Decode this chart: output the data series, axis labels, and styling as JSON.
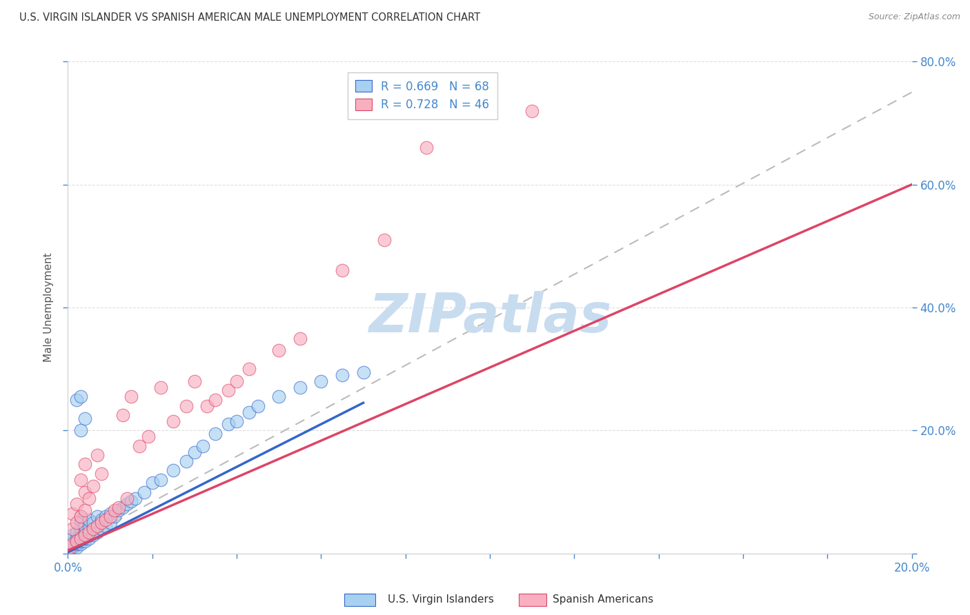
{
  "title": "U.S. VIRGIN ISLANDER VS SPANISH AMERICAN MALE UNEMPLOYMENT CORRELATION CHART",
  "source": "Source: ZipAtlas.com",
  "ylabel": "Male Unemployment",
  "xlim": [
    0,
    0.2
  ],
  "ylim": [
    0,
    0.8
  ],
  "color_blue": "#A8D0F0",
  "color_pink": "#F8B0C0",
  "color_blue_line": "#3366CC",
  "color_pink_line": "#DD4466",
  "color_gray_dash": "#BBBBBB",
  "color_axis_labels": "#4488CC",
  "color_title": "#333333",
  "watermark_text": "ZIPatlas",
  "watermark_color": "#C8DCF0",
  "series1_label": "U.S. Virgin Islanders",
  "series2_label": "Spanish Americans",
  "background_color": "#FFFFFF",
  "grid_color": "#DDDDDD",
  "blue_x": [
    0.0005,
    0.0008,
    0.001,
    0.001,
    0.001,
    0.001,
    0.001,
    0.0015,
    0.002,
    0.002,
    0.002,
    0.002,
    0.002,
    0.0025,
    0.003,
    0.003,
    0.003,
    0.003,
    0.003,
    0.003,
    0.003,
    0.004,
    0.004,
    0.004,
    0.004,
    0.005,
    0.005,
    0.005,
    0.005,
    0.006,
    0.006,
    0.006,
    0.007,
    0.007,
    0.007,
    0.008,
    0.008,
    0.009,
    0.009,
    0.01,
    0.01,
    0.011,
    0.012,
    0.013,
    0.014,
    0.015,
    0.016,
    0.018,
    0.02,
    0.022,
    0.025,
    0.028,
    0.03,
    0.032,
    0.035,
    0.038,
    0.04,
    0.043,
    0.045,
    0.05,
    0.055,
    0.06,
    0.065,
    0.07,
    0.002,
    0.003,
    0.003,
    0.004
  ],
  "blue_y": [
    0.005,
    0.008,
    0.01,
    0.015,
    0.02,
    0.025,
    0.03,
    0.012,
    0.01,
    0.015,
    0.02,
    0.025,
    0.035,
    0.018,
    0.015,
    0.02,
    0.025,
    0.03,
    0.04,
    0.05,
    0.06,
    0.02,
    0.025,
    0.035,
    0.045,
    0.025,
    0.03,
    0.04,
    0.055,
    0.03,
    0.04,
    0.05,
    0.035,
    0.045,
    0.06,
    0.04,
    0.055,
    0.045,
    0.06,
    0.05,
    0.065,
    0.06,
    0.07,
    0.075,
    0.08,
    0.085,
    0.09,
    0.1,
    0.115,
    0.12,
    0.135,
    0.15,
    0.165,
    0.175,
    0.195,
    0.21,
    0.215,
    0.23,
    0.24,
    0.255,
    0.27,
    0.28,
    0.29,
    0.295,
    0.25,
    0.2,
    0.255,
    0.22
  ],
  "pink_x": [
    0.0005,
    0.001,
    0.001,
    0.001,
    0.002,
    0.002,
    0.002,
    0.003,
    0.003,
    0.003,
    0.004,
    0.004,
    0.004,
    0.004,
    0.005,
    0.005,
    0.006,
    0.006,
    0.007,
    0.007,
    0.008,
    0.008,
    0.009,
    0.01,
    0.011,
    0.012,
    0.013,
    0.014,
    0.015,
    0.017,
    0.019,
    0.022,
    0.025,
    0.028,
    0.03,
    0.033,
    0.035,
    0.038,
    0.04,
    0.043,
    0.05,
    0.055,
    0.065,
    0.075,
    0.085,
    0.11
  ],
  "pink_y": [
    0.01,
    0.015,
    0.04,
    0.065,
    0.02,
    0.05,
    0.08,
    0.025,
    0.06,
    0.12,
    0.03,
    0.07,
    0.1,
    0.145,
    0.035,
    0.09,
    0.04,
    0.11,
    0.045,
    0.16,
    0.05,
    0.13,
    0.055,
    0.06,
    0.07,
    0.075,
    0.225,
    0.09,
    0.255,
    0.175,
    0.19,
    0.27,
    0.215,
    0.24,
    0.28,
    0.24,
    0.25,
    0.265,
    0.28,
    0.3,
    0.33,
    0.35,
    0.46,
    0.51,
    0.66,
    0.72
  ],
  "blue_trend_x": [
    0.0,
    0.07
  ],
  "blue_trend_y": [
    0.002,
    0.245
  ],
  "pink_trend_x": [
    0.0,
    0.2
  ],
  "pink_trend_y": [
    0.005,
    0.6
  ],
  "gray_trend_x": [
    0.0,
    0.2
  ],
  "gray_trend_y": [
    0.01,
    0.75
  ]
}
